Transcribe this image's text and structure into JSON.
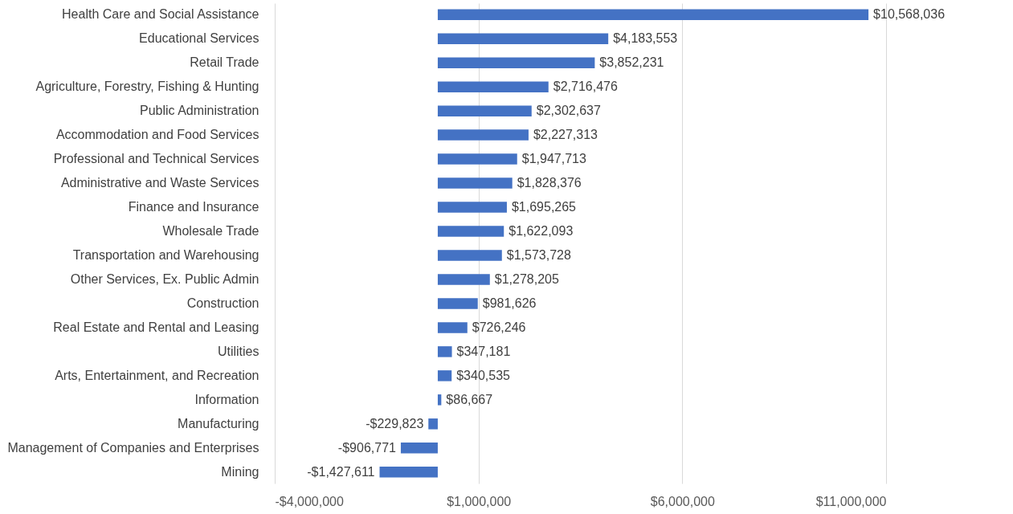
{
  "chart_data": {
    "type": "bar",
    "orientation": "horizontal",
    "categories": [
      "Health Care and Social Assistance",
      "Educational Services",
      "Retail Trade",
      "Agriculture, Forestry, Fishing & Hunting",
      "Public Administration",
      "Accommodation and Food Services",
      "Professional and Technical Services",
      "Administrative and Waste Services",
      "Finance and Insurance",
      "Wholesale Trade",
      "Transportation and Warehousing",
      "Other Services, Ex. Public Admin",
      "Construction",
      "Real Estate and Rental and Leasing",
      "Utilities",
      "Arts, Entertainment, and Recreation",
      "Information",
      "Manufacturing",
      "Management of Companies and Enterprises",
      "Mining"
    ],
    "values": [
      10568036,
      4183553,
      3852231,
      2716476,
      2302637,
      2227313,
      1947713,
      1828376,
      1695265,
      1622093,
      1573728,
      1278205,
      981626,
      726246,
      347181,
      340535,
      86667,
      -229823,
      -906771,
      -1427611
    ],
    "value_labels": [
      "$10,568,036",
      "$4,183,553",
      "$3,852,231",
      "$2,716,476",
      "$2,302,637",
      "$2,227,313",
      "$1,947,713",
      "$1,828,376",
      "$1,695,265",
      "$1,622,093",
      "$1,573,728",
      "$1,278,205",
      "$981,626",
      "$726,246",
      "$347,181",
      "$340,535",
      "$86,667",
      "-$229,823",
      "-$906,771",
      "-$1,427,611"
    ],
    "color": "#4472c4",
    "xlim": [
      -4000000,
      11000000
    ],
    "xticks": [
      {
        "value": -4000000,
        "label": "-$4,000,000"
      },
      {
        "value": 1000000,
        "label": "$1,000,000"
      },
      {
        "value": 6000000,
        "label": "$6,000,000"
      },
      {
        "value": 11000000,
        "label": "$11,000,000"
      }
    ],
    "grid": "x"
  }
}
